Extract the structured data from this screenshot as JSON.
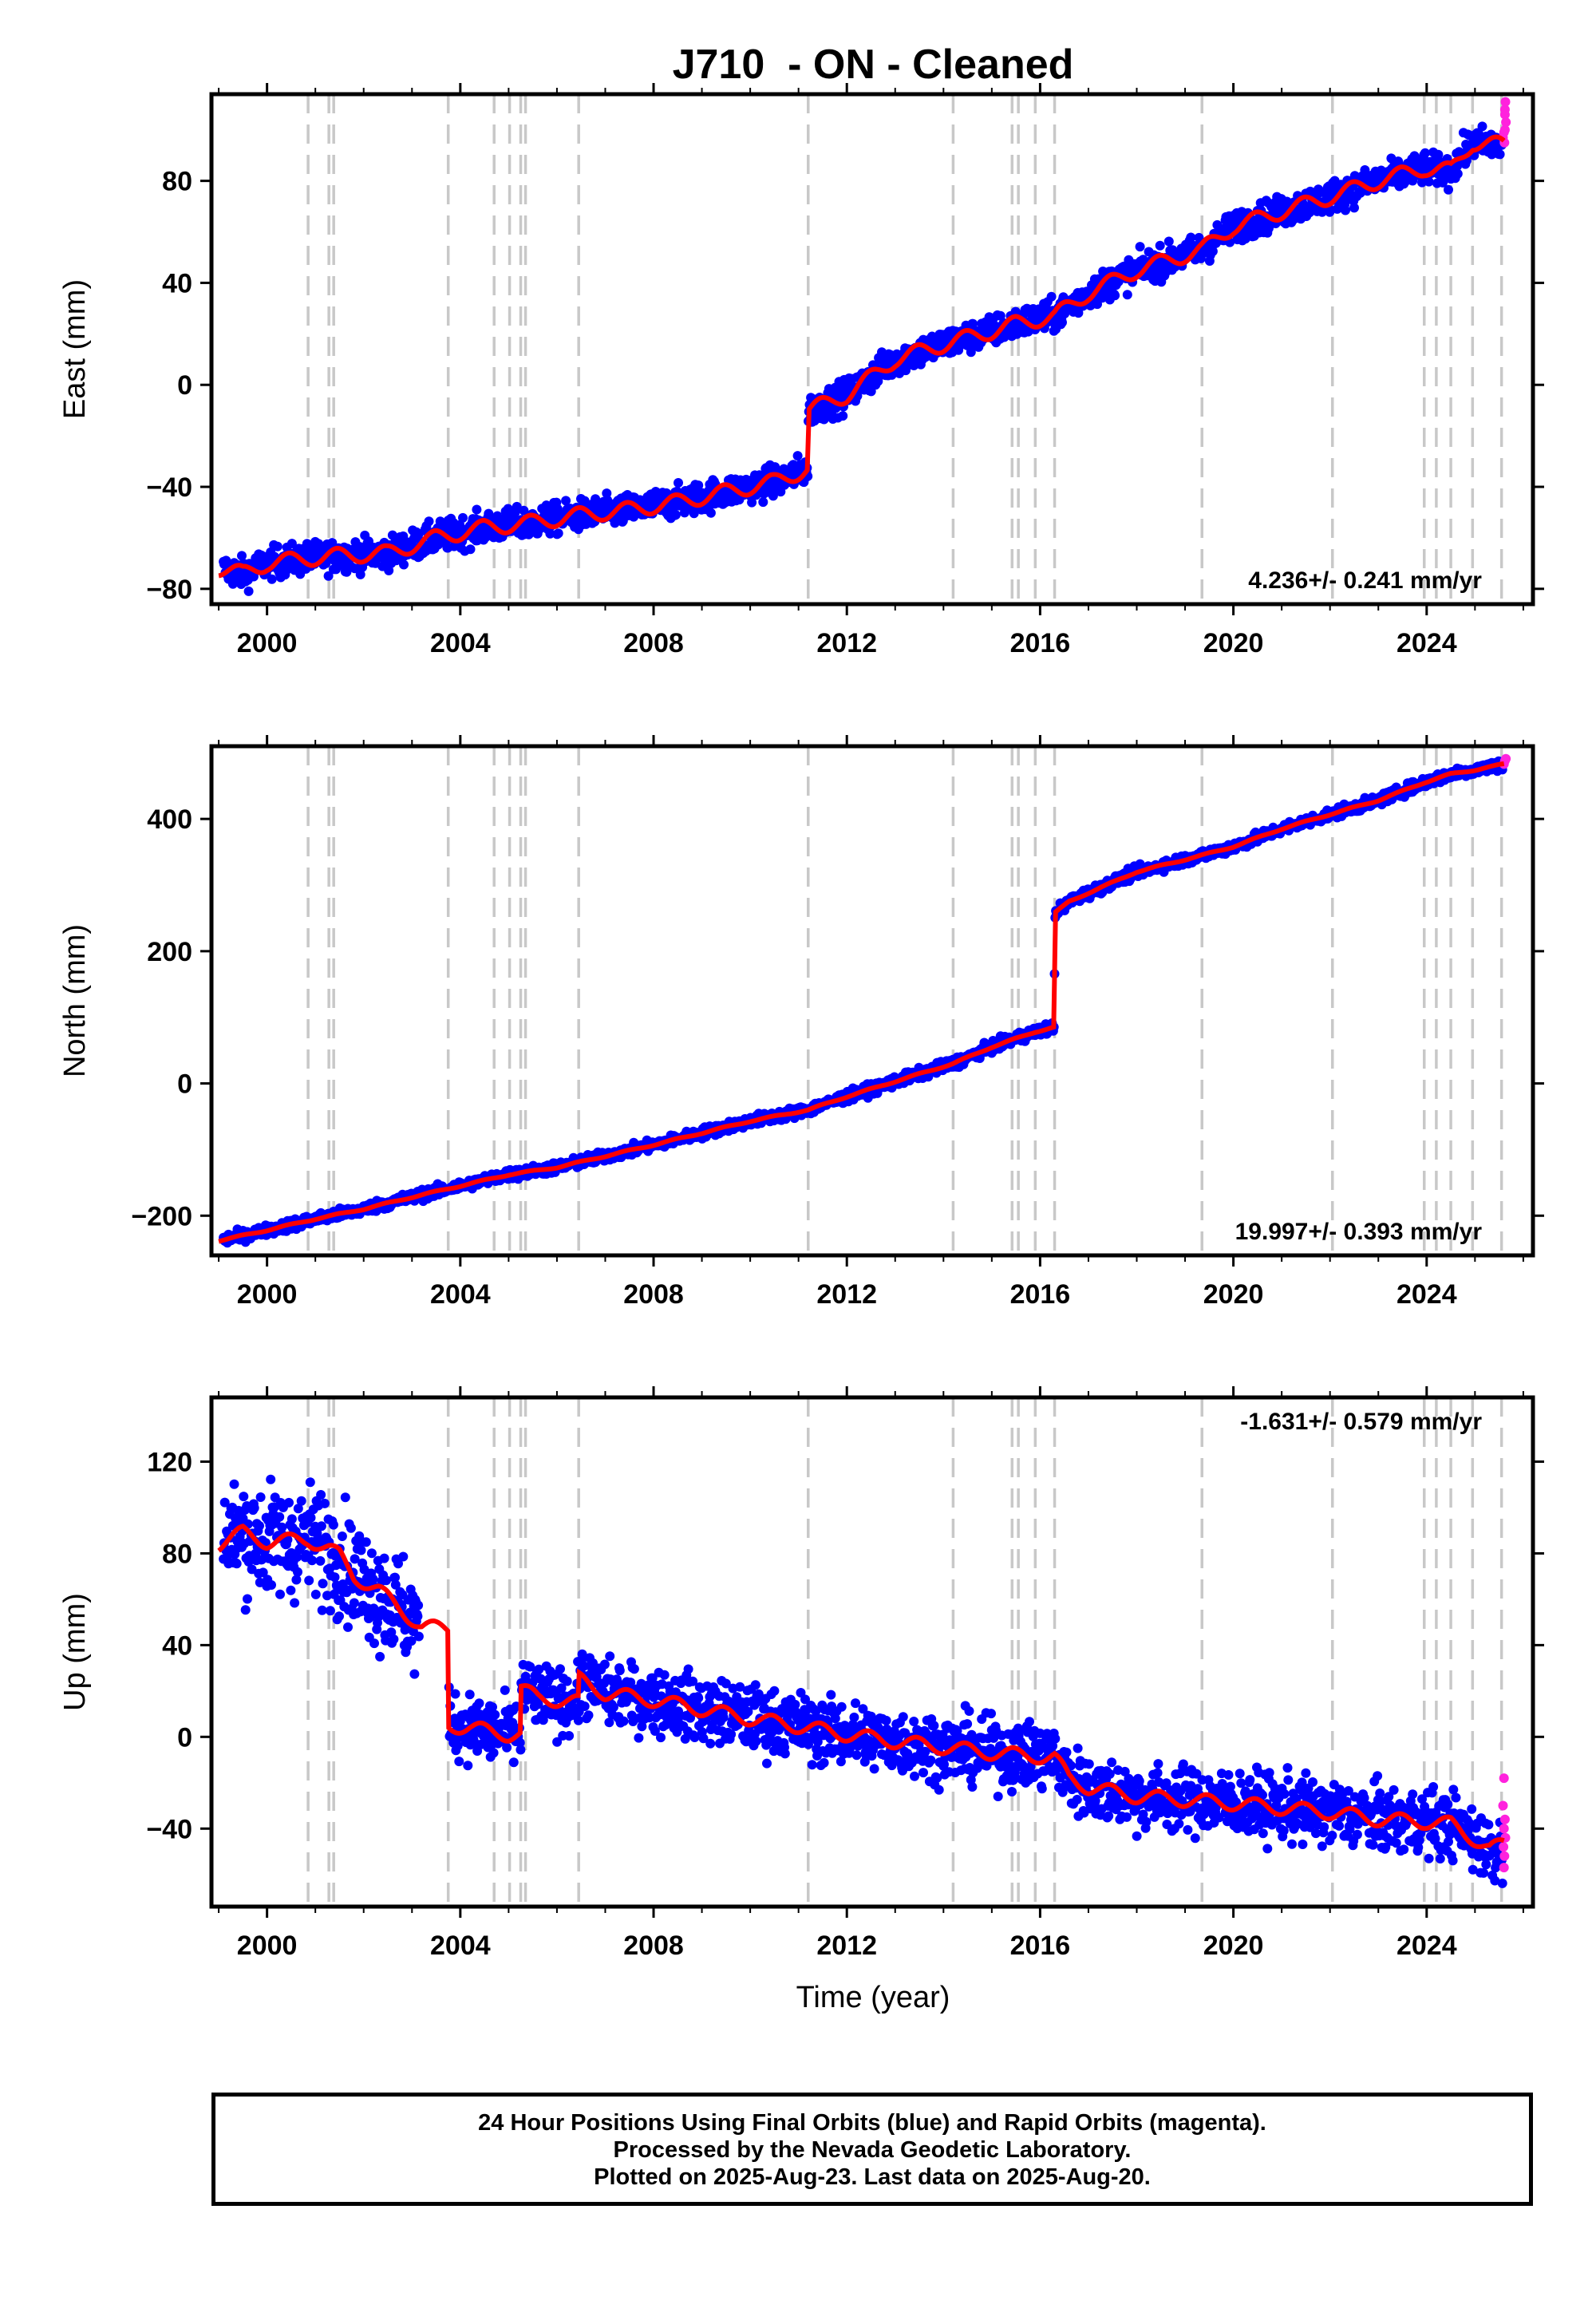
{
  "chart_data": {
    "type": "scatter",
    "title": "J710  - ON - Cleaned",
    "xlabel": "Time (year)",
    "xlim": [
      1998.85,
      2026.2
    ],
    "x_ticks": [
      "2000",
      "2004",
      "2008",
      "2012",
      "2016",
      "2020",
      "2024"
    ],
    "x_tick_values": [
      2000,
      2004,
      2008,
      2012,
      2016,
      2020,
      2024
    ],
    "event_lines": [
      2000.85,
      2001.28,
      2001.38,
      2003.75,
      2004.7,
      2005.02,
      2005.25,
      2005.35,
      2006.45,
      2011.2,
      2014.2,
      2015.42,
      2015.55,
      2015.9,
      2016.3,
      2019.35,
      2022.05,
      2023.95,
      2024.2,
      2024.5,
      2024.95,
      2025.55
    ],
    "series_colors": {
      "final": "#0000ff",
      "rapid": "#ff22dd",
      "model": "#ff0000",
      "events": "#c8c8c8"
    },
    "panels": [
      {
        "ylabel": "East (mm)",
        "ylim": [
          -86,
          114
        ],
        "y_ticks": [
          "80",
          "40",
          "0",
          "−40",
          "−80"
        ],
        "y_tick_values": [
          80,
          40,
          0,
          -40,
          -80
        ],
        "rate": "4.236+/- 0.241 mm/yr",
        "rate_position": "bottom-right",
        "model_knots": [
          [
            1999.0,
            -72
          ],
          [
            1999.5,
            -74
          ],
          [
            2000.0,
            -70
          ],
          [
            2000.85,
            -68
          ],
          [
            2001.5,
            -67
          ],
          [
            2002.5,
            -66
          ],
          [
            2003.5,
            -60
          ],
          [
            2004.5,
            -56
          ],
          [
            2005.5,
            -54
          ],
          [
            2006.5,
            -51
          ],
          [
            2007.5,
            -49
          ],
          [
            2008.5,
            -46
          ],
          [
            2009.5,
            -42
          ],
          [
            2010.5,
            -38
          ],
          [
            2011.19,
            -33
          ],
          [
            2011.21,
            -10
          ],
          [
            2012.0,
            -4
          ],
          [
            2013.0,
            10
          ],
          [
            2014.2,
            17
          ],
          [
            2015.0,
            21
          ],
          [
            2015.5,
            24
          ],
          [
            2016.3,
            27
          ],
          [
            2017.0,
            36
          ],
          [
            2018.0,
            45
          ],
          [
            2019.35,
            53
          ],
          [
            2020.0,
            62
          ],
          [
            2021.0,
            68
          ],
          [
            2022.05,
            74
          ],
          [
            2023.0,
            80
          ],
          [
            2023.95,
            85
          ],
          [
            2024.5,
            84
          ],
          [
            2024.95,
            95
          ],
          [
            2025.6,
            94
          ]
        ],
        "noise_mm": 3.0,
        "seasonal_mm": 3.0,
        "rapid_points": [
          [
            2025.58,
            97
          ],
          [
            2025.6,
            99
          ],
          [
            2025.62,
            100
          ],
          [
            2025.64,
            103
          ],
          [
            2025.62,
            106
          ],
          [
            2025.62,
            108
          ],
          [
            2025.63,
            111
          ],
          [
            2025.61,
            95
          ]
        ]
      },
      {
        "ylabel": "North (mm)",
        "ylim": [
          -260,
          510
        ],
        "y_ticks": [
          "400",
          "200",
          "0",
          "−200"
        ],
        "y_tick_values": [
          400,
          200,
          0,
          -200
        ],
        "rate": "19.997+/- 0.393 mm/yr",
        "rate_position": "bottom-right",
        "model_knots": [
          [
            1999.0,
            -238
          ],
          [
            2000.0,
            -222
          ],
          [
            2001.0,
            -205
          ],
          [
            2002.0,
            -190
          ],
          [
            2003.0,
            -172
          ],
          [
            2004.0,
            -155
          ],
          [
            2005.0,
            -138
          ],
          [
            2006.0,
            -127
          ],
          [
            2007.0,
            -110
          ],
          [
            2008.0,
            -93
          ],
          [
            2009.0,
            -75
          ],
          [
            2010.0,
            -57
          ],
          [
            2011.2,
            -40
          ],
          [
            2012.0,
            -20
          ],
          [
            2013.0,
            3
          ],
          [
            2014.2,
            30
          ],
          [
            2015.0,
            55
          ],
          [
            2015.9,
            78
          ],
          [
            2016.29,
            85
          ],
          [
            2016.31,
            258
          ],
          [
            2016.6,
            275
          ],
          [
            2017.0,
            288
          ],
          [
            2018.0,
            320
          ],
          [
            2019.35,
            345
          ],
          [
            2020.0,
            358
          ],
          [
            2021.0,
            385
          ],
          [
            2022.05,
            408
          ],
          [
            2023.0,
            428
          ],
          [
            2023.95,
            455
          ],
          [
            2024.5,
            468
          ],
          [
            2025.0,
            474
          ],
          [
            2025.6,
            483
          ]
        ],
        "noise_mm": 4.0,
        "seasonal_mm": 1.0,
        "rapid_points": [
          [
            2025.6,
            483
          ],
          [
            2025.62,
            488
          ],
          [
            2025.64,
            491
          ]
        ]
      },
      {
        "ylabel": "Up (mm)",
        "ylim": [
          -74,
          148
        ],
        "y_ticks": [
          "120",
          "80",
          "40",
          "0",
          "−40"
        ],
        "y_tick_values": [
          120,
          80,
          40,
          0,
          -40
        ],
        "rate": "-1.631+/- 0.579 mm/yr",
        "rate_position": "top-right",
        "model_knots": [
          [
            1999.0,
            84
          ],
          [
            1999.5,
            89
          ],
          [
            2000.0,
            85
          ],
          [
            2000.85,
            86
          ],
          [
            2001.28,
            82
          ],
          [
            2001.5,
            79
          ],
          [
            2001.8,
            70
          ],
          [
            2002.3,
            64
          ],
          [
            2002.8,
            55
          ],
          [
            2003.2,
            48
          ],
          [
            2003.75,
            47
          ],
          [
            2003.76,
            5
          ],
          [
            2004.2,
            4
          ],
          [
            2004.7,
            2
          ],
          [
            2005.0,
            1
          ],
          [
            2005.25,
            1
          ],
          [
            2005.26,
            21
          ],
          [
            2005.6,
            17
          ],
          [
            2006.45,
            15
          ],
          [
            2006.46,
            25
          ],
          [
            2007.0,
            19
          ],
          [
            2008.0,
            16
          ],
          [
            2009.0,
            12
          ],
          [
            2010.0,
            8
          ],
          [
            2011.2,
            4
          ],
          [
            2012.0,
            1
          ],
          [
            2013.0,
            -2
          ],
          [
            2014.2,
            -5
          ],
          [
            2015.0,
            -7
          ],
          [
            2016.3,
            -9
          ],
          [
            2016.6,
            -18
          ],
          [
            2017.0,
            -22
          ],
          [
            2018.0,
            -26
          ],
          [
            2019.35,
            -28
          ],
          [
            2020.0,
            -29
          ],
          [
            2021.0,
            -31
          ],
          [
            2022.05,
            -33
          ],
          [
            2023.0,
            -36
          ],
          [
            2023.95,
            -37
          ],
          [
            2024.5,
            -38
          ],
          [
            2024.95,
            -44
          ],
          [
            2025.3,
            -49
          ],
          [
            2025.6,
            -47
          ]
        ],
        "noise_mm": 7.0,
        "seasonal_mm": 3.0,
        "noise_early_mm": 12.0,
        "rapid_points": [
          [
            2025.6,
            -18
          ],
          [
            2025.58,
            -30
          ],
          [
            2025.62,
            -36
          ],
          [
            2025.6,
            -40
          ],
          [
            2025.63,
            -44
          ],
          [
            2025.59,
            -48
          ],
          [
            2025.61,
            -52
          ],
          [
            2025.6,
            -57
          ]
        ]
      }
    ]
  },
  "caption": {
    "line1": "24 Hour Positions Using Final Orbits (blue) and Rapid Orbits (magenta).",
    "line2": "Processed by the Nevada Geodetic Laboratory.",
    "line3": "Plotted on 2025-Aug-23. Last data on 2025-Aug-20."
  }
}
